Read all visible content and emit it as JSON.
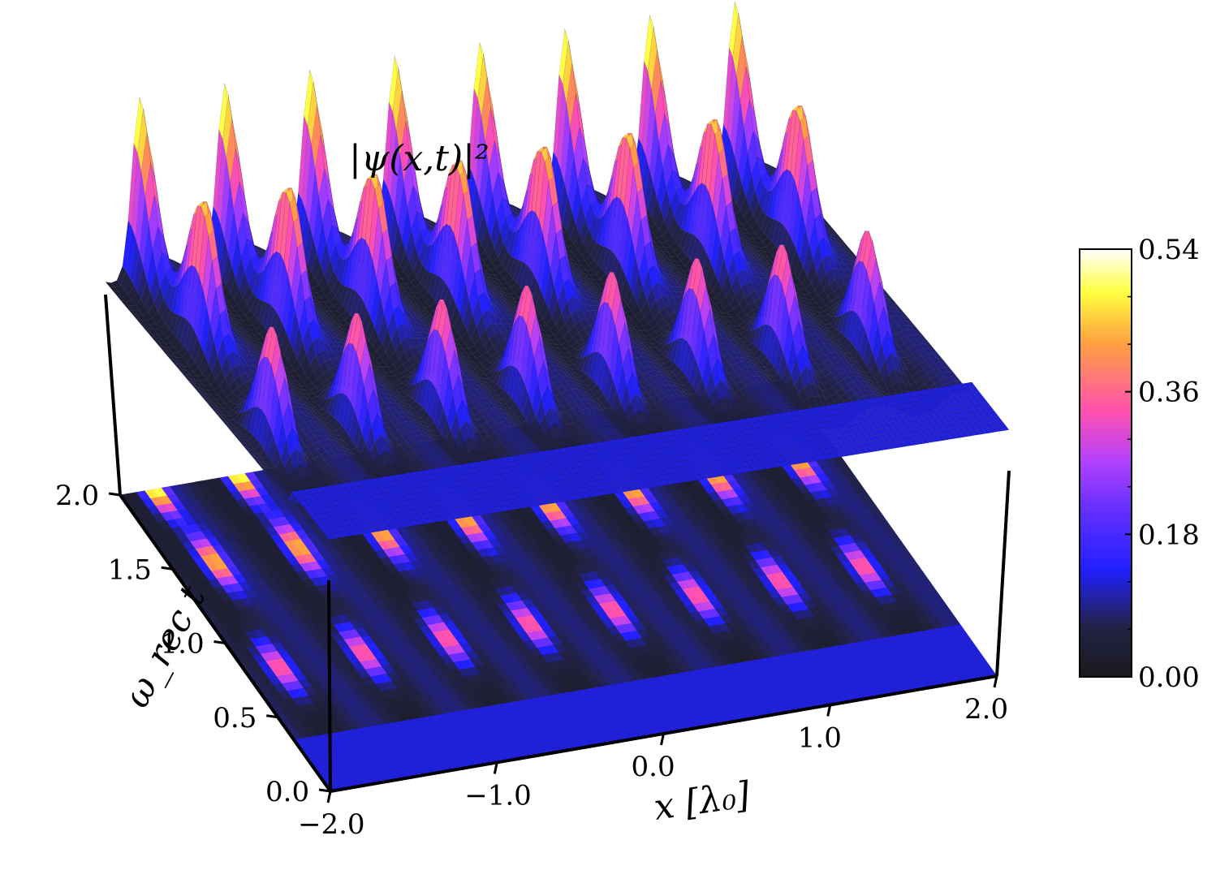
{
  "chart_data": {
    "type": "surface3d",
    "title": "|ψ(x,t)|²",
    "xlabel": "x [λ₀]",
    "ylabel": "ω_rec t",
    "x_ticks": [
      "−2.0",
      "−1.0",
      "0.0",
      "1.0",
      "2.0"
    ],
    "t_ticks": [
      "0.0",
      "0.5",
      "1.0",
      "1.5",
      "2.0"
    ],
    "xlim": [
      -2.0,
      2.0
    ],
    "tlim": [
      0.0,
      2.0
    ],
    "zlim": [
      0.0,
      0.54
    ],
    "colorbar": {
      "ticks": [
        "0.00",
        "0.18",
        "0.36",
        "0.54"
      ],
      "range": [
        0.0,
        0.54
      ],
      "colormap": [
        "#1a1a1a",
        "#2020ff",
        "#9030ff",
        "#ff50b0",
        "#ffa040",
        "#ffff40",
        "#ffffff"
      ]
    },
    "peak_rows": [
      {
        "t": 0.8,
        "x": [
          -1.8,
          -1.3,
          -0.8,
          -0.3,
          0.2,
          0.7,
          1.2,
          1.7
        ],
        "height": 0.36
      },
      {
        "t": 1.5,
        "x": [
          -1.75,
          -1.25,
          -0.75,
          -0.25,
          0.25,
          0.75,
          1.25,
          1.75
        ],
        "height": 0.42
      },
      {
        "t": 2.0,
        "x": [
          -1.8,
          -1.3,
          -0.8,
          -0.3,
          0.2,
          0.7,
          1.2,
          1.7
        ],
        "height": 0.5
      }
    ],
    "baseline": 0.12
  }
}
